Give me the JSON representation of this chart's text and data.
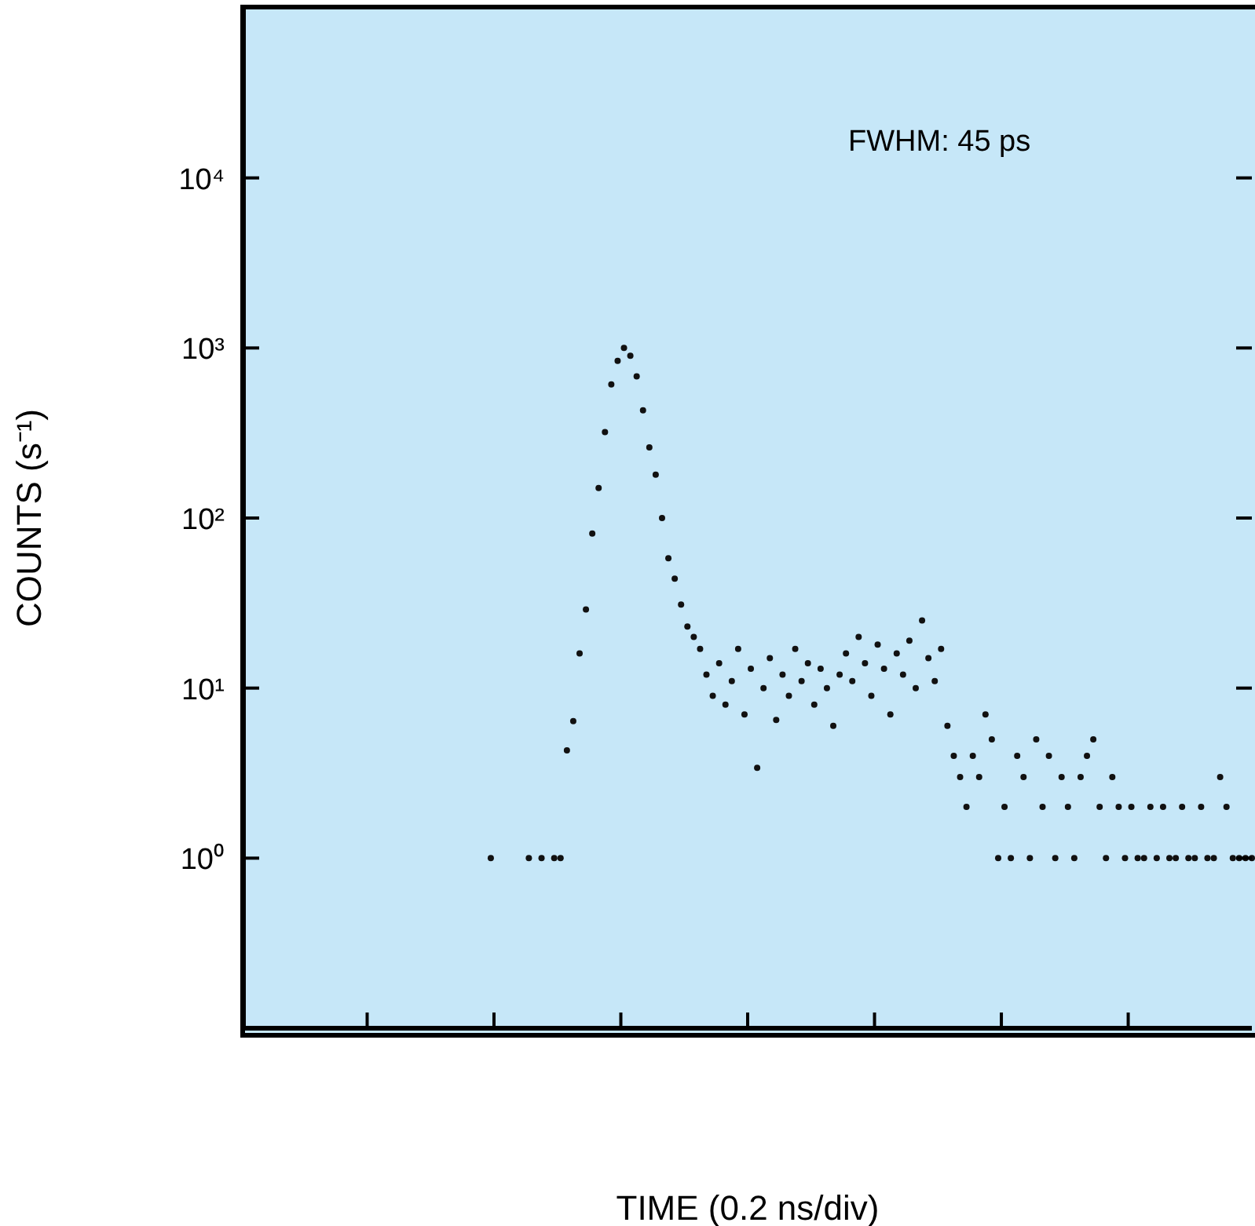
{
  "chart_data": {
    "type": "scatter",
    "xlabel": "TIME (0.2 ns/div)",
    "ylabel": "COUNTS (s⁻¹)",
    "annotations": [
      "FWHM: 45 ps"
    ],
    "categories": [
      null,
      null,
      null,
      null,
      null,
      null,
      null,
      null,
      null,
      null,
      null,
      null,
      null,
      null,
      null,
      null,
      null,
      null,
      null,
      null,
      null,
      null,
      null,
      null,
      null,
      null,
      null,
      null,
      null,
      null,
      null,
      null,
      null,
      null,
      null,
      null,
      null,
      null,
      null,
      null,
      null,
      null,
      null,
      null,
      null,
      null,
      null,
      null,
      null,
      null,
      null,
      null,
      null,
      null,
      null,
      null,
      null,
      null,
      null,
      null,
      null,
      null,
      null,
      null,
      null,
      null,
      null,
      null,
      null,
      null,
      null,
      null,
      null,
      null,
      null,
      null,
      null,
      null,
      null,
      null,
      null,
      null,
      null,
      null,
      null,
      null,
      null,
      null,
      null,
      null,
      null,
      null,
      null,
      null,
      null,
      null,
      null,
      null,
      null,
      null,
      null,
      null,
      null,
      null,
      null,
      null,
      null,
      null,
      null,
      null,
      null,
      null,
      null,
      null,
      null,
      null,
      null,
      null,
      null,
      null,
      null,
      null,
      null,
      null,
      null,
      null,
      null,
      null,
      null,
      null,
      null,
      null,
      null,
      null,
      null,
      null,
      null,
      null,
      null,
      null,
      null,
      null,
      null,
      null,
      null,
      null,
      null,
      null,
      null,
      null,
      null,
      null,
      null,
      null,
      null,
      null,
      null,
      null,
      null,
      null
    ],
    "series": [
      {
        "color": "#111111",
        "values": [
          null,
          null,
          null,
          null,
          null,
          null,
          null,
          null,
          null,
          null,
          null,
          null,
          null,
          null,
          null,
          null,
          null,
          null,
          null,
          null,
          null,
          null,
          null,
          null,
          null,
          null,
          null,
          null,
          null,
          null,
          null,
          null,
          null,
          null,
          null,
          null,
          null,
          null,
          null,
          1,
          null,
          null,
          null,
          null,
          null,
          1,
          null,
          1,
          null,
          1,
          1,
          4.3,
          6.4,
          16,
          29,
          81,
          150,
          320,
          610,
          840,
          1000,
          900,
          680,
          430,
          260,
          180,
          100,
          58,
          44,
          31,
          23,
          20,
          17,
          12,
          9,
          14,
          8,
          11,
          17,
          7,
          13,
          3.4,
          10,
          15,
          6.5,
          12,
          9,
          17,
          11,
          14,
          8,
          13,
          10,
          6,
          12,
          16,
          11,
          20,
          14,
          9,
          18,
          13,
          7,
          16,
          12,
          19,
          10,
          25,
          15,
          11,
          17,
          6,
          4,
          3,
          2,
          4,
          3,
          7,
          5,
          1,
          2,
          1,
          4,
          3,
          1,
          5,
          2,
          4,
          1,
          3,
          2,
          1,
          3,
          4,
          5,
          2,
          1,
          3,
          2,
          1,
          2,
          1,
          1,
          2,
          1,
          2,
          1,
          1,
          2,
          1,
          1,
          2,
          1,
          1,
          3,
          2,
          1,
          1,
          1,
          1
        ]
      }
    ],
    "ylim": [
      0.1,
      100000
    ],
    "yticks": [
      {
        "value": 1,
        "label": "10⁰"
      },
      {
        "value": 10,
        "label": "10¹"
      },
      {
        "value": 100,
        "label": "10²"
      },
      {
        "value": 1000,
        "label": "10³"
      },
      {
        "value": 10000,
        "label": "10⁴"
      }
    ],
    "log": true,
    "marker": "circle",
    "tick_labels": "y"
  }
}
